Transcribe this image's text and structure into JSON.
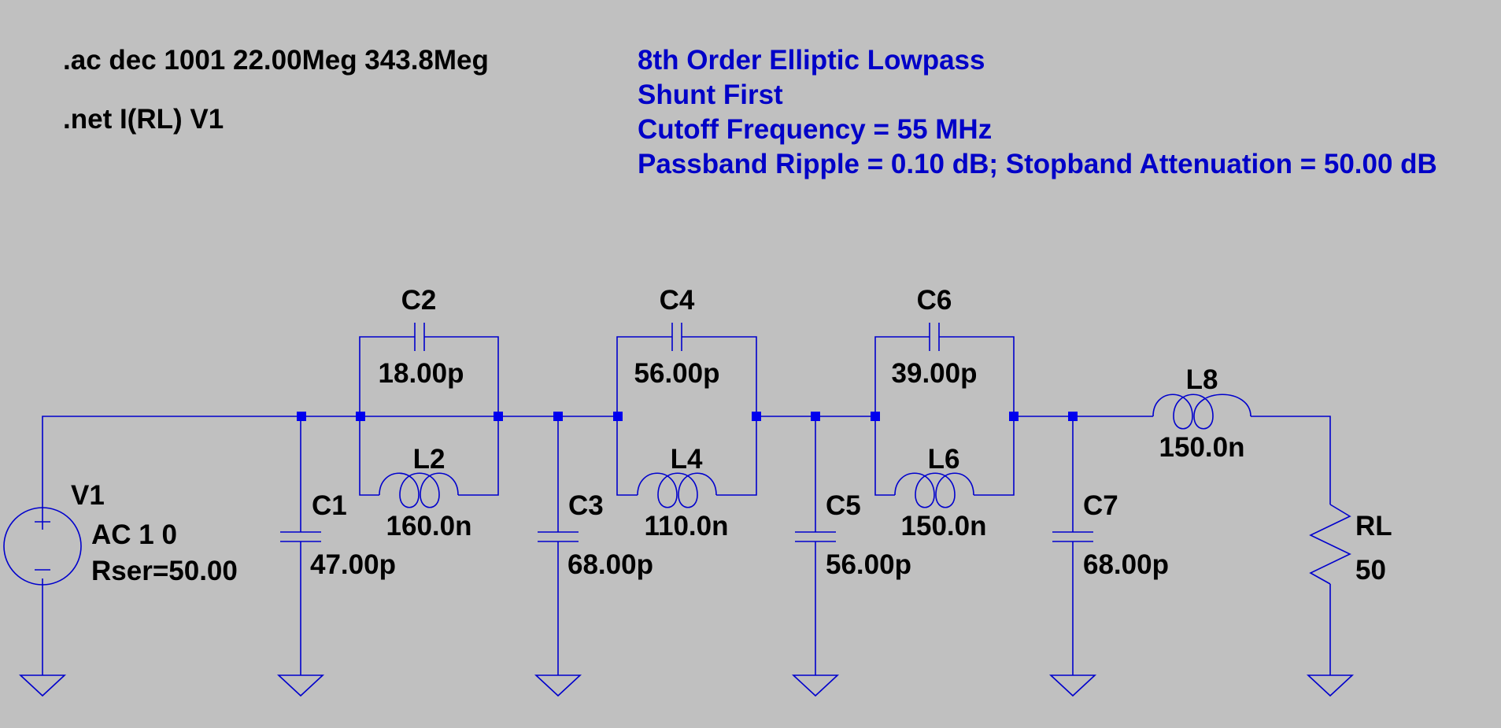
{
  "directives": {
    "ac": ".ac dec 1001 22.00Meg 343.8Meg",
    "net": ".net I(RL) V1"
  },
  "comments": {
    "line1": "8th Order Elliptic Lowpass",
    "line2": "Shunt First",
    "line3": "Cutoff Frequency = 55 MHz",
    "line4": "Passband Ripple = 0.10 dB; Stopband Attenuation = 50.00 dB"
  },
  "components": {
    "V1": {
      "name": "V1",
      "value": "AC 1 0",
      "extra": "Rser=50.00"
    },
    "C1": {
      "name": "C1",
      "value": "47.00p"
    },
    "C2": {
      "name": "C2",
      "value": "18.00p"
    },
    "L2": {
      "name": "L2",
      "value": "160.0n"
    },
    "C3": {
      "name": "C3",
      "value": "68.00p"
    },
    "C4": {
      "name": "C4",
      "value": "56.00p"
    },
    "L4": {
      "name": "L4",
      "value": "110.0n"
    },
    "C5": {
      "name": "C5",
      "value": "56.00p"
    },
    "C6": {
      "name": "C6",
      "value": "39.00p"
    },
    "L6": {
      "name": "L6",
      "value": "150.0n"
    },
    "C7": {
      "name": "C7",
      "value": "68.00p"
    },
    "L8": {
      "name": "L8",
      "value": "150.0n"
    },
    "RL": {
      "name": "RL",
      "value": "50"
    }
  },
  "colors": {
    "background": "#c0c0c0",
    "wire": "#0000cc",
    "comment": "#0000c8",
    "text": "#000000"
  }
}
